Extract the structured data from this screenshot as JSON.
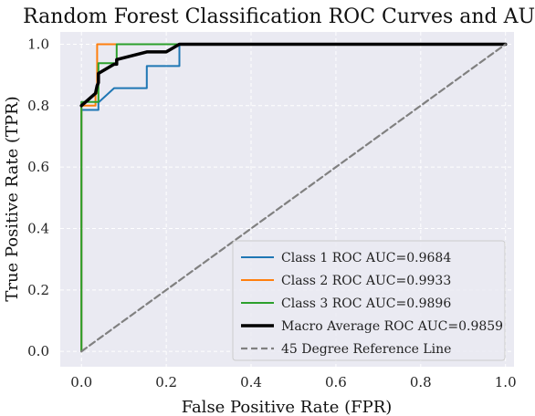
{
  "chart_data": {
    "type": "line",
    "title": "Random Forest Classification ROC Curves and AUC",
    "xlabel": "False Positive Rate (FPR)",
    "ylabel": "True Positive Rate (TPR)",
    "xlim": [
      -0.05,
      1.02
    ],
    "ylim": [
      -0.05,
      1.04
    ],
    "xticks": [
      0.0,
      0.2,
      0.4,
      0.6,
      0.8,
      1.0
    ],
    "yticks": [
      0.0,
      0.2,
      0.4,
      0.6,
      0.8,
      1.0
    ],
    "xtick_labels": [
      "0.0",
      "0.2",
      "0.4",
      "0.6",
      "0.8",
      "1.0"
    ],
    "ytick_labels": [
      "0.0",
      "0.2",
      "0.4",
      "0.6",
      "0.8",
      "1.0"
    ],
    "grid": true,
    "legend_position": "lower-right",
    "series": [
      {
        "name": "Class 1 ROC  AUC=0.9684",
        "color": "#1f77b4",
        "linewidth": 2,
        "dashed": false,
        "x": [
          0,
          0,
          0.04,
          0.04,
          0.077,
          0.154,
          0.154,
          0.231,
          0.231,
          1.0
        ],
        "y": [
          0,
          0.786,
          0.786,
          0.81,
          0.857,
          0.857,
          0.929,
          0.929,
          1.0,
          1.0
        ]
      },
      {
        "name": "Class 2 ROC  AUC=0.9933",
        "color": "#ff7f0e",
        "linewidth": 2,
        "dashed": false,
        "x": [
          0,
          0,
          0.033,
          0.033,
          0.037,
          0.037,
          1.0
        ],
        "y": [
          0,
          0.8,
          0.8,
          0.84,
          0.84,
          1.0,
          1.0
        ]
      },
      {
        "name": "Class 3 ROC  AUC=0.9896",
        "color": "#2ca02c",
        "linewidth": 2,
        "dashed": false,
        "x": [
          0,
          0,
          0.04,
          0.04,
          0.083,
          0.083,
          1.0
        ],
        "y": [
          0,
          0.812,
          0.812,
          0.938,
          0.938,
          1.0,
          1.0
        ]
      },
      {
        "name": "Macro Average ROC  AUC=0.9859",
        "color": "#000000",
        "linewidth": 3.5,
        "dashed": false,
        "x": [
          0,
          0.033,
          0.037,
          0.04,
          0.04,
          0.077,
          0.083,
          0.083,
          0.154,
          0.2,
          0.231,
          1.0
        ],
        "y": [
          0.8,
          0.84,
          0.865,
          0.875,
          0.905,
          0.935,
          0.935,
          0.95,
          0.975,
          0.975,
          1.0,
          1.0
        ]
      },
      {
        "name": "45 Degree Reference Line",
        "color": "#808080",
        "linewidth": 2.2,
        "dashed": true,
        "x": [
          0,
          1
        ],
        "y": [
          0,
          1
        ]
      }
    ]
  }
}
